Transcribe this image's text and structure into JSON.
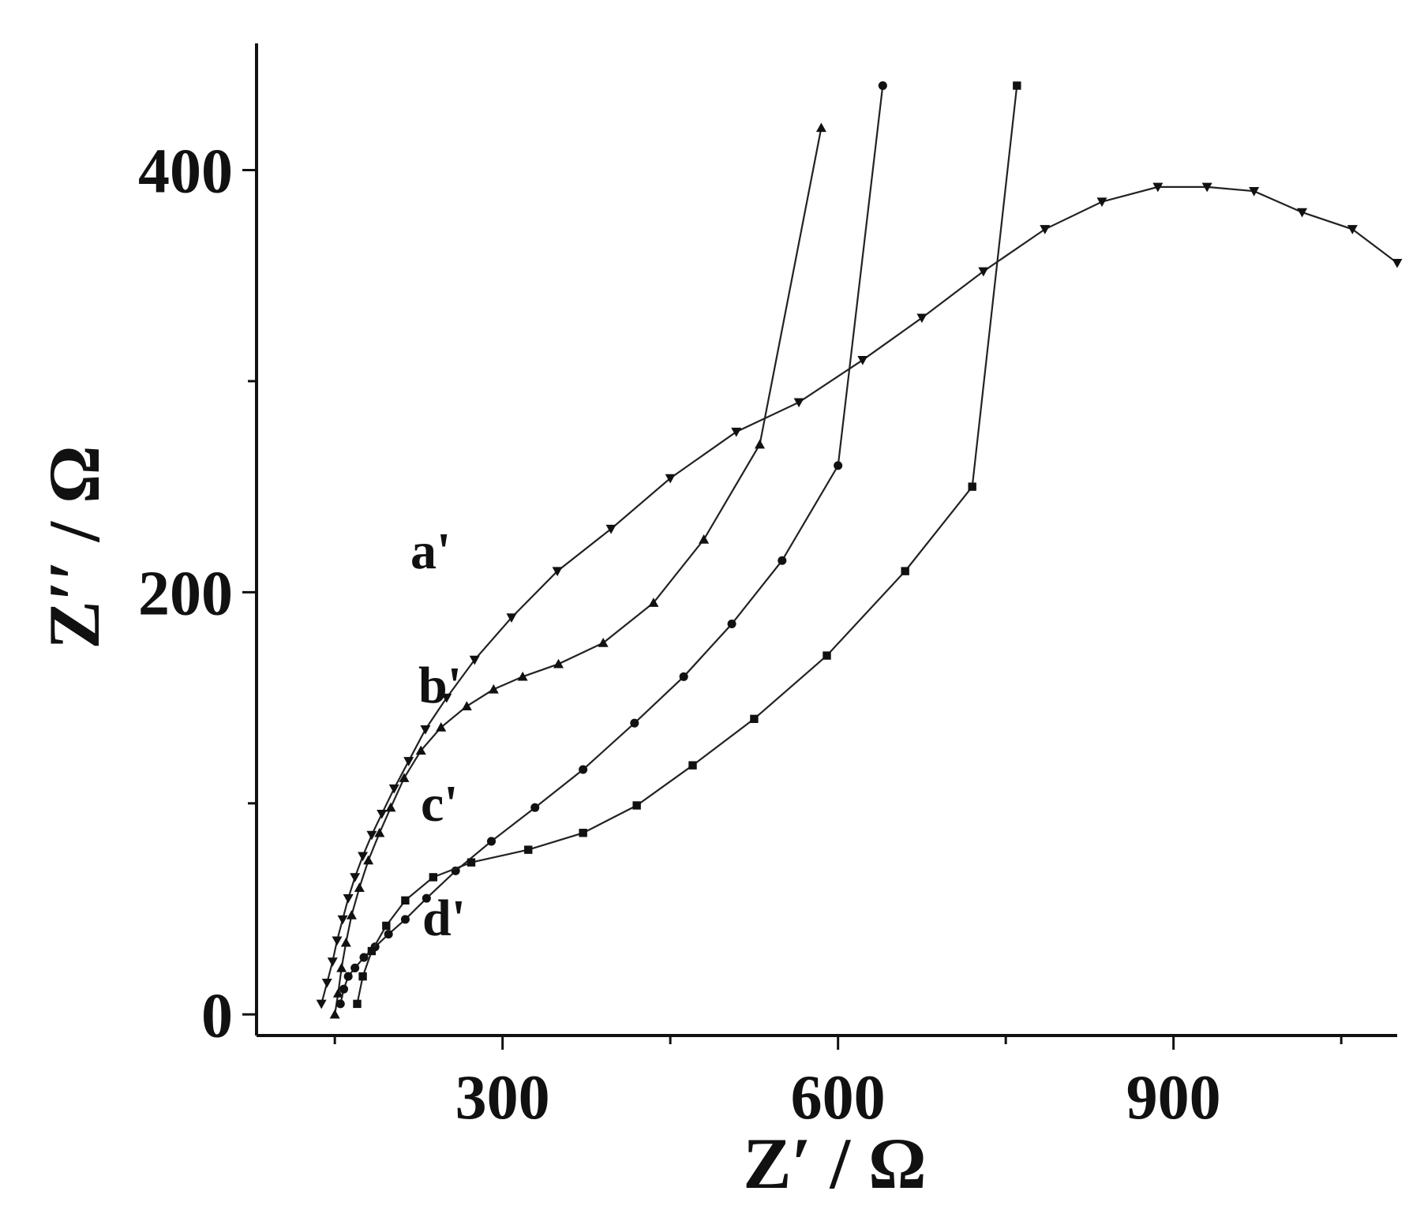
{
  "chart_data": {
    "type": "scatter",
    "title": "",
    "xlabel": "Z′ / Ω",
    "ylabel": "Z′′ / Ω",
    "xlim": [
      80,
      1100
    ],
    "ylim": [
      -10,
      460
    ],
    "xticks_major": [
      300,
      600,
      900
    ],
    "xticks_minor": [
      150,
      450,
      750,
      1050
    ],
    "yticks_major": [
      0,
      200,
      400
    ],
    "yticks_minor": [
      100,
      300
    ],
    "grid": false,
    "legend": "none",
    "series": [
      {
        "name": "a'",
        "marker": "triangle-down",
        "x": [
          138,
          143,
          148,
          152,
          157,
          162,
          168,
          175,
          183,
          192,
          203,
          216,
          231,
          250,
          275,
          308,
          349,
          397,
          450,
          509,
          565,
          622,
          675,
          730,
          785,
          836,
          886,
          930,
          972,
          1015,
          1060,
          1100
        ],
        "y": [
          5,
          15,
          25,
          35,
          45,
          55,
          65,
          75,
          85,
          95,
          107,
          120,
          135,
          150,
          168,
          188,
          210,
          230,
          254,
          276,
          290,
          310,
          330,
          352,
          372,
          385,
          392,
          392,
          390,
          380,
          372,
          356
        ]
      },
      {
        "name": "b'",
        "marker": "triangle-up",
        "x": [
          150,
          153,
          156,
          160,
          165,
          172,
          180,
          190,
          200,
          212,
          227,
          245,
          268,
          292,
          318,
          350,
          390,
          435,
          480,
          530,
          585
        ],
        "y": [
          0,
          10,
          22,
          34,
          47,
          60,
          73,
          86,
          98,
          112,
          125,
          136,
          146,
          154,
          160,
          166,
          176,
          195,
          225,
          270,
          420
        ]
      },
      {
        "name": "c'",
        "marker": "circle",
        "x": [
          155,
          158,
          162,
          168,
          176,
          186,
          198,
          213,
          232,
          258,
          290,
          329,
          372,
          418,
          462,
          505,
          550,
          600,
          640
        ],
        "y": [
          5,
          12,
          18,
          22,
          27,
          32,
          38,
          45,
          55,
          68,
          82,
          98,
          116,
          138,
          160,
          185,
          215,
          260,
          440
        ]
      },
      {
        "name": "d'",
        "marker": "square",
        "x": [
          170,
          175,
          183,
          196,
          213,
          238,
          272,
          323,
          372,
          420,
          470,
          525,
          590,
          660,
          720,
          760
        ],
        "y": [
          5,
          18,
          30,
          42,
          54,
          65,
          72,
          78,
          86,
          99,
          118,
          140,
          170,
          210,
          250,
          440
        ]
      }
    ],
    "curve_labels": [
      "a'",
      "b'",
      "c'",
      "d'"
    ]
  }
}
